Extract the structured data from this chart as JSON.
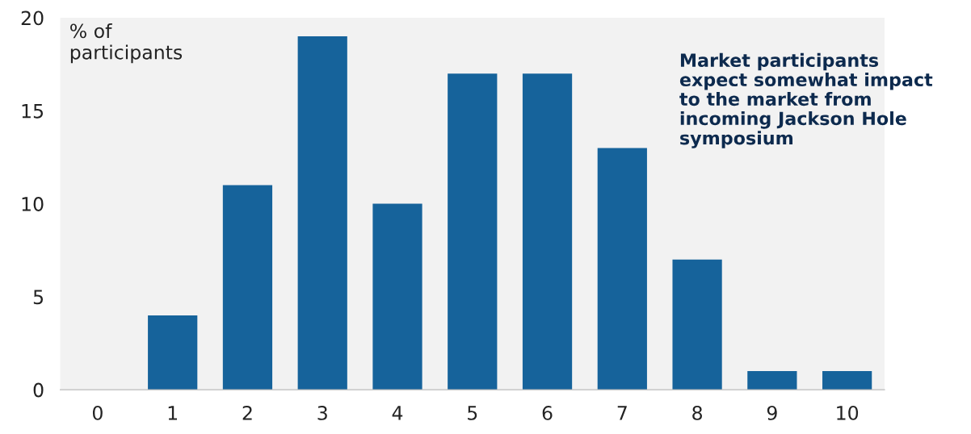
{
  "chart_data": {
    "type": "bar",
    "ylabel": "% of\nparticipants",
    "categories": [
      "0",
      "1",
      "2",
      "3",
      "4",
      "5",
      "6",
      "7",
      "8",
      "9",
      "10"
    ],
    "values": [
      0,
      4,
      11,
      19,
      10,
      17,
      17,
      13,
      7,
      1,
      1
    ],
    "color": "#16639b",
    "ylim": [
      0,
      20
    ],
    "yticks": [
      0,
      5,
      10,
      15,
      20
    ],
    "grid": false,
    "legend": false,
    "annotations": [
      "Market participants\nexpect somewhat impact\nto the market from\nincoming Jackson Hole\nsymposium"
    ]
  }
}
